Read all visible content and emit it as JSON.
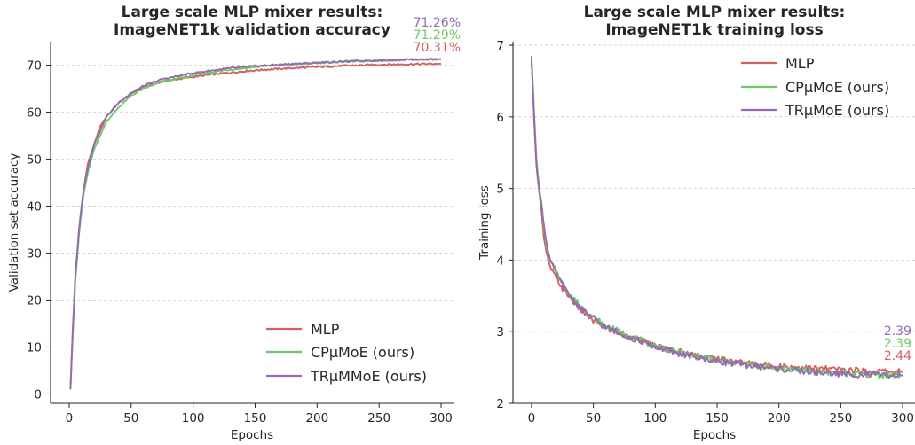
{
  "colors": {
    "MLP": "#d65f5f",
    "CP": "#6acc64",
    "TR": "#956cb4"
  },
  "chart_data": [
    {
      "type": "line",
      "title_line1": "Large scale MLP mixer results:",
      "title_line2": "ImageNET1k validation accuracy",
      "xlabel": "Epochs",
      "ylabel": "Validation set accuracy",
      "xlim": [
        -15,
        310
      ],
      "ylim": [
        -2,
        75
      ],
      "xticks": [
        0,
        50,
        100,
        150,
        200,
        250,
        300
      ],
      "yticks": [
        0,
        10,
        20,
        30,
        40,
        50,
        60,
        70
      ],
      "grid": "horizontal",
      "legend_placement": "lower-right",
      "series": [
        {
          "name": "MLP",
          "color_key": "MLP",
          "final_label": "70.31%",
          "x": [
            1,
            3,
            5,
            8,
            10,
            12,
            15,
            20,
            25,
            30,
            40,
            50,
            60,
            75,
            100,
            125,
            150,
            175,
            200,
            225,
            250,
            275,
            300
          ],
          "y": [
            1,
            14,
            25,
            35,
            40,
            44,
            49,
            53,
            57,
            59,
            62,
            64,
            65.3,
            66.5,
            67.5,
            68.3,
            68.9,
            69.3,
            69.6,
            69.9,
            70.1,
            70.2,
            70.31
          ]
        },
        {
          "name": "CPμMoE (ours)",
          "color_key": "CP",
          "final_label": "71.29%",
          "x": [
            1,
            3,
            5,
            8,
            10,
            12,
            15,
            20,
            25,
            30,
            40,
            50,
            60,
            75,
            100,
            125,
            150,
            175,
            200,
            225,
            250,
            275,
            300
          ],
          "y": [
            1,
            13,
            24,
            34,
            39,
            43,
            47,
            52,
            55,
            58,
            61,
            63.5,
            65,
            66.5,
            67.8,
            68.9,
            69.6,
            70.1,
            70.5,
            70.8,
            71.0,
            71.2,
            71.29
          ]
        },
        {
          "name": "TRμMMoE (ours)",
          "color_key": "TR",
          "final_label": "71.26%",
          "x": [
            1,
            3,
            5,
            8,
            10,
            12,
            15,
            20,
            25,
            30,
            40,
            50,
            60,
            75,
            100,
            125,
            150,
            175,
            200,
            225,
            250,
            275,
            300
          ],
          "y": [
            1,
            14,
            25,
            35,
            40,
            44,
            48,
            53,
            56,
            59,
            62,
            64,
            65.6,
            67,
            68.3,
            69.2,
            69.8,
            70.2,
            70.5,
            70.8,
            71.0,
            71.2,
            71.26
          ]
        }
      ]
    },
    {
      "type": "line",
      "title_line1": "Large scale MLP mixer results:",
      "title_line2": "ImageNET1k training loss",
      "xlabel": "Epochs",
      "ylabel": "Training loss",
      "xlim": [
        -15,
        310
      ],
      "ylim": [
        2,
        7.05
      ],
      "xticks": [
        0,
        50,
        100,
        150,
        200,
        250,
        300
      ],
      "yticks": [
        2,
        3,
        4,
        5,
        6,
        7
      ],
      "grid": "horizontal",
      "legend_placement": "upper-right",
      "series": [
        {
          "name": "MLP",
          "color_key": "MLP",
          "final_label": "2.44",
          "x": [
            0,
            2,
            4,
            6,
            8,
            10,
            12,
            15,
            20,
            25,
            30,
            40,
            50,
            60,
            75,
            100,
            125,
            150,
            175,
            200,
            225,
            250,
            275,
            300
          ],
          "y": [
            6.8,
            6.0,
            5.3,
            5.0,
            4.7,
            4.3,
            4.1,
            3.9,
            3.75,
            3.6,
            3.5,
            3.3,
            3.15,
            3.05,
            2.95,
            2.8,
            2.7,
            2.62,
            2.56,
            2.52,
            2.49,
            2.47,
            2.45,
            2.44
          ]
        },
        {
          "name": "CPμMoE (ours)",
          "color_key": "CP",
          "final_label": "2.39",
          "x": [
            0,
            2,
            4,
            6,
            8,
            10,
            12,
            15,
            20,
            25,
            30,
            40,
            50,
            60,
            75,
            100,
            125,
            150,
            175,
            200,
            225,
            250,
            275,
            300
          ],
          "y": [
            6.8,
            6.1,
            5.4,
            5.05,
            4.8,
            4.45,
            4.2,
            4.0,
            3.85,
            3.68,
            3.55,
            3.35,
            3.2,
            3.08,
            2.97,
            2.8,
            2.68,
            2.6,
            2.54,
            2.49,
            2.45,
            2.42,
            2.4,
            2.39
          ]
        },
        {
          "name": "TRμMoE (ours)",
          "color_key": "TR",
          "final_label": "2.39",
          "x": [
            0,
            2,
            4,
            6,
            8,
            10,
            12,
            15,
            20,
            25,
            30,
            40,
            50,
            60,
            75,
            100,
            125,
            150,
            175,
            200,
            225,
            250,
            275,
            300
          ],
          "y": [
            6.85,
            6.05,
            5.35,
            5.0,
            4.75,
            4.5,
            4.25,
            4.0,
            3.8,
            3.65,
            3.52,
            3.32,
            3.18,
            3.06,
            2.96,
            2.79,
            2.67,
            2.59,
            2.53,
            2.48,
            2.44,
            2.41,
            2.4,
            2.39
          ]
        }
      ]
    }
  ]
}
